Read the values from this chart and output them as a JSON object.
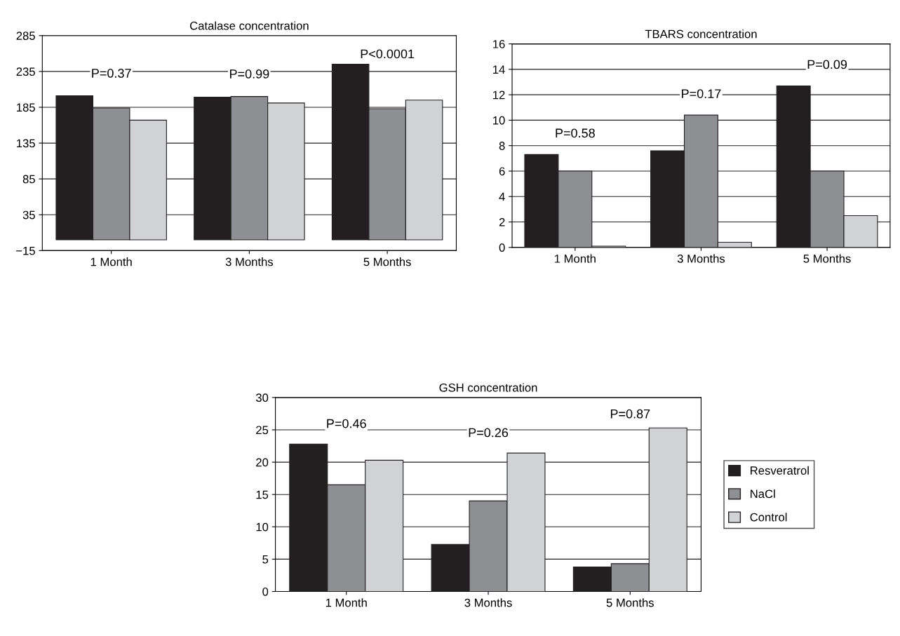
{
  "chart_data": [
    {
      "type": "bar",
      "title": "Catalase concentration",
      "categories": [
        "1 Month",
        "3 Months",
        "5 Months"
      ],
      "series": [
        {
          "color": "#231f20",
          "values": [
            201,
            199,
            245
          ]
        },
        {
          "color": "#8e8f93",
          "values": [
            184,
            200,
            183
          ]
        },
        {
          "color": "#d1d2d4",
          "values": [
            167,
            191,
            195
          ]
        }
      ],
      "ylim": [
        -15,
        285
      ],
      "yticks": [
        {
          "value": -15,
          "label": "−15"
        },
        35,
        85,
        135,
        185,
        235,
        285
      ],
      "grid": "y",
      "annotations": [
        "P=0.37",
        "P=0.99",
        "P<0.0001"
      ]
    },
    {
      "type": "bar",
      "title": "TBARS concentration",
      "categories": [
        "1 Month",
        "3 Months",
        "5 Months"
      ],
      "series": [
        {
          "color": "#231f20",
          "values": [
            7.3,
            7.6,
            12.7
          ]
        },
        {
          "color": "#8e8f93",
          "values": [
            6.0,
            10.4,
            6.0
          ]
        },
        {
          "color": "#d1d2d4",
          "values": [
            0.1,
            0.4,
            2.5
          ]
        }
      ],
      "ylim": [
        0,
        16
      ],
      "yticks": [
        0,
        2,
        4,
        6,
        8,
        10,
        12,
        14,
        16
      ],
      "grid": "y",
      "annotations": [
        "P=0.58",
        "P=0.17",
        "P=0.09"
      ]
    },
    {
      "type": "bar",
      "title": "GSH concentration",
      "categories": [
        "1 Month",
        "3 Months",
        "5 Months"
      ],
      "series": [
        {
          "name": "Resveratrol",
          "color": "#231f20",
          "values": [
            22.8,
            7.3,
            3.8
          ]
        },
        {
          "name": "NaCl",
          "color": "#8e8f93",
          "values": [
            16.5,
            14.0,
            4.3
          ]
        },
        {
          "name": "Control",
          "color": "#d1d2d4",
          "values": [
            20.3,
            21.4,
            25.3
          ]
        }
      ],
      "ylim": [
        0,
        30
      ],
      "yticks": [
        0,
        5,
        10,
        15,
        20,
        25,
        30
      ],
      "grid": "y",
      "legend": "right",
      "annotations": [
        "P=0.46",
        "P=0.26",
        "P=0.87"
      ]
    }
  ]
}
